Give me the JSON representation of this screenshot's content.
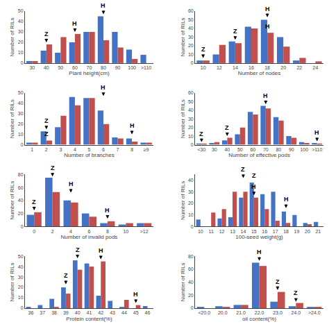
{
  "chart_data": [
    {
      "type": "bar",
      "xlabel": "Plant height(cm)",
      "ylabel": "Number of RILs",
      "categories": [
        "30",
        "40",
        "50",
        "60",
        "70",
        "80",
        "90",
        "100",
        ">110"
      ],
      "series": [
        {
          "color": "#4472C4",
          "values": [
            2,
            12,
            10,
            20,
            30,
            45,
            30,
            13,
            8
          ]
        },
        {
          "color": "#C0504D",
          "values": [
            2,
            18,
            25,
            28,
            30,
            22,
            15,
            4,
            0
          ]
        }
      ],
      "ylim": [
        0,
        50
      ],
      "yticks": [
        0,
        10,
        20,
        30,
        40,
        50
      ],
      "grid": false,
      "annotations": [
        {
          "text": "Z",
          "x": 1,
          "y": 20,
          "arrow": true
        },
        {
          "text": "H",
          "x": 3,
          "y": 30,
          "arrow": true
        },
        {
          "text": "H",
          "x": 5,
          "y": 47,
          "arrow": true
        }
      ]
    },
    {
      "type": "bar",
      "xlabel": "Number of nodes",
      "ylabel": "Number of RILs",
      "categories": [
        "10",
        "12",
        "14",
        "16",
        "18",
        "20",
        "22",
        "24"
      ],
      "series": [
        {
          "color": "#4472C4",
          "values": [
            3,
            10,
            25,
            42,
            50,
            30,
            3,
            0
          ]
        },
        {
          "color": "#C0504D",
          "values": [
            3,
            21,
            23,
            40,
            35,
            19,
            6,
            2
          ]
        }
      ],
      "ylim": [
        0,
        60
      ],
      "yticks": [
        0,
        10,
        20,
        30,
        40,
        50,
        60
      ],
      "grid": false,
      "annotations": [
        {
          "text": "Z",
          "x": 0,
          "y": 6,
          "arrow": true
        },
        {
          "text": "Z",
          "x": 2,
          "y": 27,
          "arrow": true
        },
        {
          "text": "H",
          "x": 4,
          "y": 53,
          "arrow": true
        },
        {
          "text": "H",
          "x": 4,
          "y": 37,
          "arrow": false
        }
      ]
    },
    {
      "type": "bar",
      "xlabel": "Number of branches",
      "ylabel": "Number of RILs",
      "categories": [
        "1",
        "2",
        "3",
        "4",
        "5",
        "6",
        "7",
        "8",
        "≥9"
      ],
      "series": [
        {
          "color": "#4472C4",
          "values": [
            2,
            13,
            17,
            46,
            45,
            33,
            7,
            6,
            2
          ]
        },
        {
          "color": "#C0504D",
          "values": [
            2,
            4,
            28,
            38,
            45,
            20,
            6,
            3,
            2
          ]
        }
      ],
      "ylim": [
        0,
        50
      ],
      "yticks": [
        0,
        10,
        20,
        30,
        40,
        50
      ],
      "grid": false,
      "annotations": [
        {
          "text": "Z",
          "x": 1,
          "y": 15,
          "arrow": true
        },
        {
          "text": "Z",
          "x": 1,
          "y": 6,
          "arrow": false
        },
        {
          "text": "H",
          "x": 5,
          "y": 47,
          "arrow": true
        },
        {
          "text": "H",
          "x": 7,
          "y": 10,
          "arrow": true
        }
      ]
    },
    {
      "type": "bar",
      "xlabel": "Number of effective pods",
      "ylabel": "Number of RILs",
      "categories": [
        "<30",
        "30",
        "40",
        "50",
        "60",
        "70",
        "80",
        "90",
        "100",
        ">110"
      ],
      "series": [
        {
          "color": "#4472C4",
          "values": [
            1,
            2,
            5,
            12,
            38,
            45,
            32,
            10,
            3,
            2
          ]
        },
        {
          "color": "#C0504D",
          "values": [
            1,
            3,
            8,
            20,
            35,
            42,
            28,
            8,
            2,
            1
          ]
        }
      ],
      "ylim": [
        0,
        60
      ],
      "yticks": [
        0,
        10,
        20,
        30,
        40,
        50,
        60
      ],
      "grid": false,
      "annotations": [
        {
          "text": "Z",
          "x": 0,
          "y": 3,
          "arrow": true
        },
        {
          "text": "Z",
          "x": 2,
          "y": 10,
          "arrow": true
        },
        {
          "text": "H",
          "x": 5,
          "y": 47,
          "arrow": true
        },
        {
          "text": "H",
          "x": 9,
          "y": 4,
          "arrow": true
        }
      ]
    },
    {
      "type": "bar",
      "xlabel": "Number of invalid pods",
      "ylabel": "Number of RILs",
      "categories": [
        "0",
        "2",
        "4",
        "6",
        "8",
        "10",
        ">12"
      ],
      "series": [
        {
          "color": "#4472C4",
          "values": [
            18,
            75,
            40,
            20,
            5,
            3,
            5
          ]
        },
        {
          "color": "#C0504D",
          "values": [
            22,
            53,
            37,
            15,
            8,
            5,
            5
          ]
        }
      ],
      "ylim": [
        0,
        80
      ],
      "yticks": [
        0,
        20,
        40,
        60,
        80
      ],
      "grid": false,
      "annotations": [
        {
          "text": "Z",
          "x": 0,
          "y": 25,
          "arrow": true
        },
        {
          "text": "Z",
          "x": 1,
          "y": 77,
          "arrow": true
        },
        {
          "text": "H",
          "x": 2,
          "y": 52,
          "arrow": true
        },
        {
          "text": "H",
          "x": 4,
          "y": 12,
          "arrow": true
        }
      ]
    },
    {
      "type": "bar",
      "xlabel": "100-seed weight(g)",
      "ylabel": "Number of RILs",
      "categories": [
        "10",
        "11",
        "12",
        "13",
        "14",
        "15",
        "16",
        "17",
        "18",
        "19",
        "20",
        "21"
      ],
      "series": [
        {
          "color": "#4472C4",
          "values": [
            6,
            0,
            7,
            8,
            25,
            38,
            28,
            30,
            13,
            10,
            3,
            4
          ]
        },
        {
          "color": "#C0504D",
          "values": [
            0,
            12,
            15,
            30,
            30,
            25,
            15,
            5,
            3,
            0,
            2,
            0
          ]
        }
      ],
      "ylim": [
        0,
        45
      ],
      "yticks": [
        0,
        10,
        20,
        30,
        40
      ],
      "grid": false,
      "annotations": [
        {
          "text": "Z",
          "x": 4,
          "y": 42,
          "arrow": true
        },
        {
          "text": "Z",
          "x": 5,
          "y": 40,
          "arrow": false
        },
        {
          "text": "H",
          "x": 5,
          "y": 27,
          "arrow": true
        },
        {
          "text": "H",
          "x": 8,
          "y": 16,
          "arrow": true
        }
      ]
    },
    {
      "type": "bar",
      "xlabel": "Protein content(%)",
      "ylabel": "Number of RILs",
      "categories": [
        "36",
        "37",
        "38",
        "39",
        "40",
        "41",
        "42",
        "43",
        "44",
        "45",
        "46"
      ],
      "series": [
        {
          "color": "#4472C4",
          "values": [
            1,
            3,
            9,
            20,
            46,
            43,
            12,
            7,
            1,
            0,
            2
          ]
        },
        {
          "color": "#C0504D",
          "values": [
            0,
            0,
            1,
            14,
            37,
            40,
            45,
            0,
            8,
            3,
            0
          ]
        }
      ],
      "ylim": [
        0,
        50
      ],
      "yticks": [
        0,
        10,
        20,
        30,
        40,
        50
      ],
      "grid": false,
      "annotations": [
        {
          "text": "Z",
          "x": 3,
          "y": 23,
          "arrow": true
        },
        {
          "text": "Z",
          "x": 4,
          "y": 48,
          "arrow": true
        },
        {
          "text": "H",
          "x": 6,
          "y": 47,
          "arrow": true
        },
        {
          "text": "H",
          "x": 9,
          "y": 5,
          "arrow": true
        }
      ]
    },
    {
      "type": "bar",
      "xlabel": "oil content(%)",
      "ylabel": "Number of RILs",
      "categories": [
        "<20.0",
        "20.0",
        "21.0",
        "22.0",
        "23.0",
        "24.0",
        ">24.0"
      ],
      "series": [
        {
          "color": "#4472C4",
          "values": [
            1,
            3,
            5,
            70,
            10,
            3,
            2
          ]
        },
        {
          "color": "#C0504D",
          "values": [
            0,
            2,
            5,
            65,
            25,
            8,
            1
          ]
        }
      ],
      "ylim": [
        0,
        80
      ],
      "yticks": [
        0,
        20,
        40,
        60,
        80
      ],
      "grid": false,
      "annotations": [
        {
          "text": "H",
          "x": 3,
          "y": 73,
          "arrow": true
        },
        {
          "text": "Z",
          "x": 4,
          "y": 28,
          "arrow": true
        },
        {
          "text": "Z",
          "x": 5,
          "y": 10,
          "arrow": true
        }
      ]
    }
  ]
}
